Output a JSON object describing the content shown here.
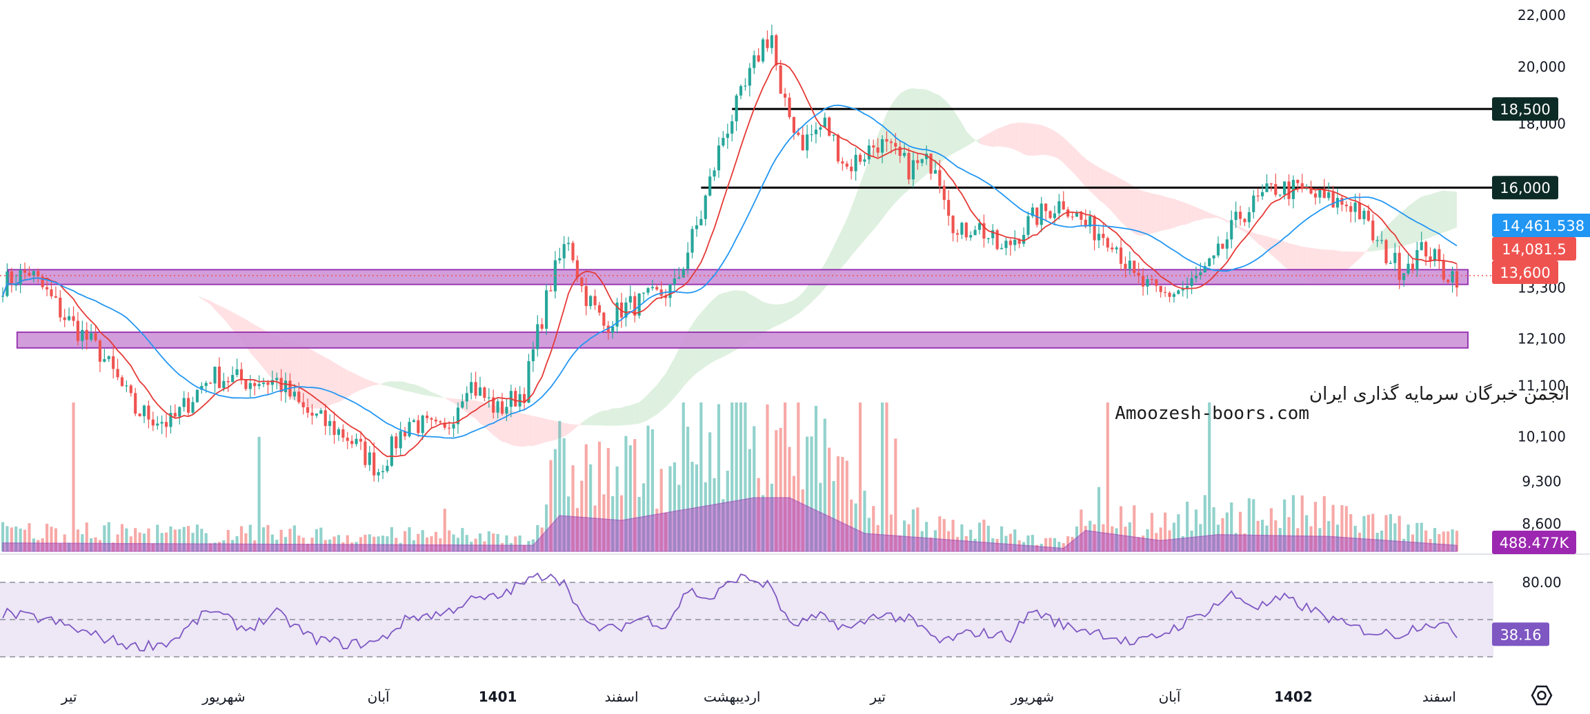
{
  "watermark": {
    "line1": "انجمن خبرگان سرمایه گذاری ایران",
    "line2": "Amoozesh-boors.com"
  },
  "colors": {
    "up": "#26a69a",
    "down": "#ef5350",
    "ma_fast": "#e53935",
    "ma_slow": "#2196f3",
    "zone_fill": "#ce93d8",
    "zone_stroke": "#8e24aa",
    "level_line": "#000000",
    "rsi_line": "#7e57c2",
    "rsi_band": "#ede7f6",
    "volume_area": "#ab47bc",
    "cloud_bull": "#c8e6c9",
    "cloud_bear": "#ffcdd2"
  },
  "chart_data": {
    "type": "candlestick",
    "price_axis": {
      "ticks": [
        "22,000",
        "20,000",
        "18,000",
        "13,300",
        "12,100",
        "11,100",
        "10,100",
        "9,300",
        "8,600"
      ],
      "tick_values": [
        22000,
        20000,
        18000,
        13300,
        12100,
        11100,
        10100,
        9300,
        8600
      ],
      "scale": "log",
      "range": [
        8200,
        23000
      ]
    },
    "time_axis": {
      "labels": [
        "تیر",
        "شهریور",
        "آبان",
        "1401",
        "اسفند",
        "اردیبهشت",
        "تیر",
        "شهریور",
        "آبان",
        "1402",
        "اسفند"
      ],
      "bold": [
        false,
        false,
        false,
        true,
        false,
        false,
        false,
        false,
        false,
        true,
        false
      ],
      "bar_index": [
        15,
        50,
        85,
        112,
        140,
        165,
        198,
        233,
        264,
        292,
        325
      ]
    },
    "levels": [
      {
        "name": "resistance-18500",
        "value": 18500,
        "label": "18,500",
        "start_bar": 165
      },
      {
        "name": "resistance-16000",
        "value": 16000,
        "label": "16,000",
        "start_bar": 158
      }
    ],
    "zones": [
      {
        "name": "support-zone-upper",
        "low": 13380,
        "high": 13750,
        "start_bar": 0
      },
      {
        "name": "support-zone-lower",
        "low": 11900,
        "high": 12250,
        "start_bar": 2
      }
    ],
    "price_badges": [
      {
        "name": "ma-slow-price",
        "label": "14,461.538",
        "value": 14461.538,
        "color": "#2196f3"
      },
      {
        "name": "ma-fast-price",
        "label": "14,081.5",
        "value": 14081.5,
        "color": "#ef5350"
      },
      {
        "name": "last-price",
        "label": "13,600",
        "value": 13600,
        "color": "#ef5350"
      }
    ],
    "volume_badge": {
      "label": "488.477K",
      "color": "#9c27b0"
    },
    "rsi": {
      "upper_label": "80.00",
      "value_label": "38.16",
      "value": 38.16,
      "bands": [
        80,
        50,
        20
      ]
    },
    "candles": {
      "count": 330,
      "anchors": [
        [
          0,
          13400
        ],
        [
          6,
          13700
        ],
        [
          14,
          12600
        ],
        [
          22,
          11800
        ],
        [
          30,
          10600
        ],
        [
          38,
          10350
        ],
        [
          47,
          11300
        ],
        [
          55,
          11200
        ],
        [
          62,
          11200
        ],
        [
          68,
          10600
        ],
        [
          78,
          10100
        ],
        [
          85,
          9500
        ],
        [
          92,
          10400
        ],
        [
          100,
          10150
        ],
        [
          105,
          11200
        ],
        [
          112,
          10600
        ],
        [
          118,
          11000
        ],
        [
          124,
          13400
        ],
        [
          128,
          14600
        ],
        [
          131,
          13300
        ],
        [
          136,
          12400
        ],
        [
          140,
          12800
        ],
        [
          146,
          13000
        ],
        [
          152,
          13300
        ],
        [
          158,
          15200
        ],
        [
          163,
          17600
        ],
        [
          168,
          19200
        ],
        [
          172,
          20900
        ],
        [
          174,
          21200
        ],
        [
          176,
          18800
        ],
        [
          181,
          17400
        ],
        [
          186,
          18000
        ],
        [
          191,
          16600
        ],
        [
          198,
          17400
        ],
        [
          205,
          16600
        ],
        [
          211,
          16800
        ],
        [
          216,
          14600
        ],
        [
          220,
          15000
        ],
        [
          226,
          14200
        ],
        [
          233,
          15100
        ],
        [
          240,
          15600
        ],
        [
          245,
          14900
        ],
        [
          251,
          14600
        ],
        [
          256,
          13500
        ],
        [
          262,
          13100
        ],
        [
          268,
          13300
        ],
        [
          274,
          13900
        ],
        [
          280,
          15200
        ],
        [
          288,
          16000
        ],
        [
          294,
          15900
        ],
        [
          300,
          15600
        ],
        [
          306,
          15500
        ],
        [
          311,
          14400
        ],
        [
          316,
          13800
        ],
        [
          322,
          14300
        ],
        [
          326,
          13700
        ],
        [
          329,
          13600
        ]
      ]
    },
    "volume": {
      "avg_anchors": [
        [
          0,
          0.14
        ],
        [
          120,
          0.1
        ],
        [
          126,
          0.6
        ],
        [
          140,
          0.52
        ],
        [
          170,
          0.9
        ],
        [
          178,
          0.9
        ],
        [
          195,
          0.3
        ],
        [
          240,
          0.05
        ],
        [
          245,
          0.35
        ],
        [
          262,
          0.18
        ],
        [
          275,
          0.28
        ],
        [
          300,
          0.25
        ],
        [
          329,
          0.1
        ]
      ]
    },
    "rsi_series": {
      "anchors": [
        [
          0,
          55
        ],
        [
          10,
          50
        ],
        [
          20,
          38
        ],
        [
          30,
          28
        ],
        [
          38,
          32
        ],
        [
          47,
          58
        ],
        [
          55,
          42
        ],
        [
          62,
          55
        ],
        [
          70,
          35
        ],
        [
          78,
          30
        ],
        [
          85,
          32
        ],
        [
          92,
          52
        ],
        [
          100,
          55
        ],
        [
          105,
          65
        ],
        [
          112,
          68
        ],
        [
          118,
          80
        ],
        [
          124,
          88
        ],
        [
          128,
          76
        ],
        [
          132,
          45
        ],
        [
          138,
          42
        ],
        [
          145,
          52
        ],
        [
          150,
          45
        ],
        [
          155,
          74
        ],
        [
          160,
          66
        ],
        [
          166,
          84
        ],
        [
          170,
          82
        ],
        [
          174,
          76
        ],
        [
          178,
          45
        ],
        [
          185,
          52
        ],
        [
          192,
          42
        ],
        [
          198,
          55
        ],
        [
          205,
          50
        ],
        [
          212,
          32
        ],
        [
          220,
          40
        ],
        [
          228,
          36
        ],
        [
          233,
          58
        ],
        [
          240,
          45
        ],
        [
          248,
          40
        ],
        [
          256,
          30
        ],
        [
          262,
          38
        ],
        [
          270,
          52
        ],
        [
          278,
          70
        ],
        [
          284,
          60
        ],
        [
          290,
          67
        ],
        [
          296,
          58
        ],
        [
          304,
          45
        ],
        [
          310,
          40
        ],
        [
          316,
          38
        ],
        [
          322,
          48
        ],
        [
          326,
          45
        ],
        [
          329,
          38
        ]
      ]
    }
  }
}
